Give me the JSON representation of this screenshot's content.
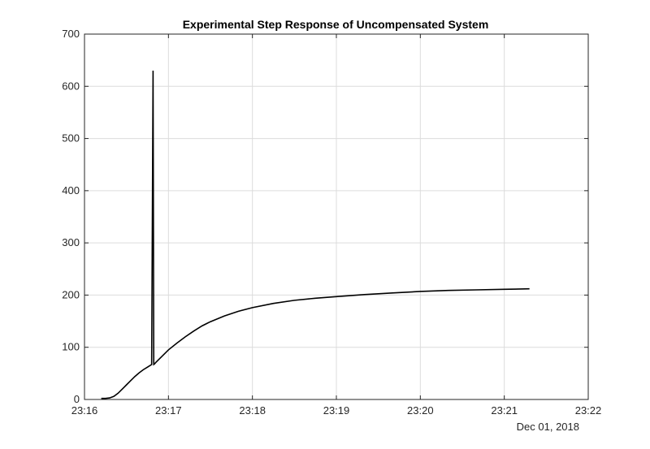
{
  "chart_data": {
    "type": "line",
    "title": "Experimental Step Response of Uncompensated System",
    "xlabel": "",
    "ylabel": "",
    "date_label": "Dec 01, 2018",
    "x_unit": "time (HH:MM)",
    "xlim": [
      "23:16",
      "23:22"
    ],
    "ylim": [
      0,
      700
    ],
    "grid": true,
    "x_ticks": [
      "23:16",
      "23:17",
      "23:18",
      "23:19",
      "23:20",
      "23:21",
      "23:22"
    ],
    "y_ticks": [
      0,
      100,
      200,
      300,
      400,
      500,
      600,
      700
    ],
    "series": [
      {
        "color": "#000000",
        "x": [
          "23:16:12",
          "23:16:15",
          "23:16:18",
          "23:16:21",
          "23:16:24",
          "23:16:27",
          "23:16:30",
          "23:16:33",
          "23:16:36",
          "23:16:39",
          "23:16:42",
          "23:16:45",
          "23:16:48",
          "23:16:49",
          "23:16:49.5",
          "23:16:50",
          "23:16:51",
          "23:16:54",
          "23:16:57",
          "23:17:00",
          "23:17:06",
          "23:17:12",
          "23:17:18",
          "23:17:24",
          "23:17:30",
          "23:17:40",
          "23:17:50",
          "23:18:00",
          "23:18:15",
          "23:18:30",
          "23:18:45",
          "23:19:00",
          "23:19:20",
          "23:19:40",
          "23:20:00",
          "23:20:20",
          "23:20:40",
          "23:21:00",
          "23:21:18"
        ],
        "y": [
          2,
          2,
          3,
          6,
          12,
          20,
          28,
          36,
          44,
          51,
          57,
          62,
          67,
          630,
          67,
          68,
          71,
          79,
          87,
          95,
          108,
          120,
          131,
          141,
          149,
          160,
          169,
          176,
          184,
          190,
          194,
          197,
          201,
          204,
          207,
          209,
          210,
          211,
          212
        ]
      }
    ]
  }
}
